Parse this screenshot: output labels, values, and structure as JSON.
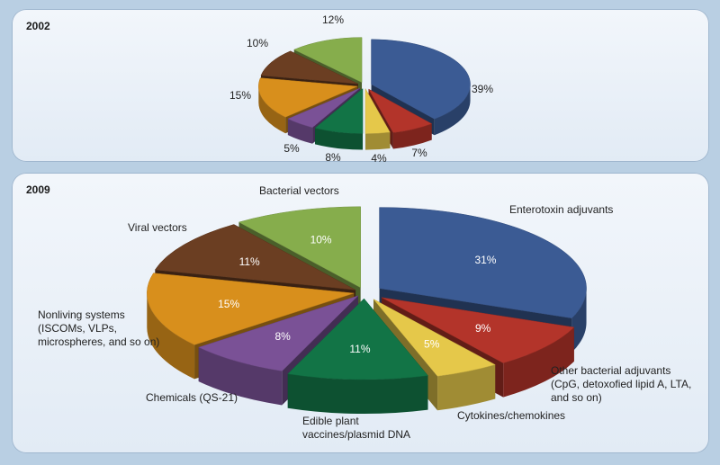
{
  "chart_data": [
    {
      "type": "pie",
      "title": "2002",
      "slices": [
        {
          "value": 39,
          "label": "39%",
          "color": "#3b5b94"
        },
        {
          "value": 7,
          "label": "7%",
          "color": "#b3342a"
        },
        {
          "value": 4,
          "label": "4%",
          "color": "#e5c84a"
        },
        {
          "value": 8,
          "label": "8%",
          "color": "#127446"
        },
        {
          "value": 5,
          "label": "5%",
          "color": "#7a5196"
        },
        {
          "value": 15,
          "label": "15%",
          "color": "#d88f1c"
        },
        {
          "value": 10,
          "label": "10%",
          "color": "#6b3e22"
        },
        {
          "value": 12,
          "label": "12%",
          "color": "#86ad4c"
        }
      ]
    },
    {
      "type": "pie",
      "title": "2009",
      "slices": [
        {
          "value": 31,
          "label": "31%",
          "category": "Enterotoxin adjuvants",
          "color": "#3b5b94"
        },
        {
          "value": 9,
          "label": "9%",
          "category": "Other bacterial adjuvants (CpG, detoxofied lipid A, LTA, and so on)",
          "color": "#b3342a"
        },
        {
          "value": 5,
          "label": "5%",
          "category": "Cytokines/chemokines",
          "color": "#e5c84a"
        },
        {
          "value": 11,
          "label": "11%",
          "category": "Edible plant vaccines/plasmid DNA",
          "color": "#127446"
        },
        {
          "value": 8,
          "label": "8%",
          "category": "Chemicals (QS-21)",
          "color": "#7a5196"
        },
        {
          "value": 15,
          "label": "15%",
          "category": "Nonliving systems (ISCOMs, VLPs, microspheres, and so on)",
          "color": "#d88f1c"
        },
        {
          "value": 11,
          "label": "11%",
          "category": "Viral vectors",
          "color": "#6b3e22"
        },
        {
          "value": 10,
          "label": "10%",
          "category": "Bacterial vectors",
          "color": "#86ad4c"
        }
      ]
    }
  ],
  "category_text": {
    "enterotoxin": [
      "Enterotoxin adjuvants"
    ],
    "other_bacterial": [
      "Other bacterial adjuvants",
      "(CpG, detoxofied lipid A, LTA,",
      "and so on)"
    ],
    "cytokines": [
      "Cytokines/chemokines"
    ],
    "edible": [
      "Edible plant",
      "vaccines/plasmid DNA"
    ],
    "chemicals": [
      "Chemicals (QS-21)"
    ],
    "nonliving": [
      "Nonliving systems",
      "(ISCOMs, VLPs,",
      "microspheres, and so on)"
    ],
    "viral": [
      "Viral vectors"
    ],
    "bacterial": [
      "Bacterial vectors"
    ]
  }
}
